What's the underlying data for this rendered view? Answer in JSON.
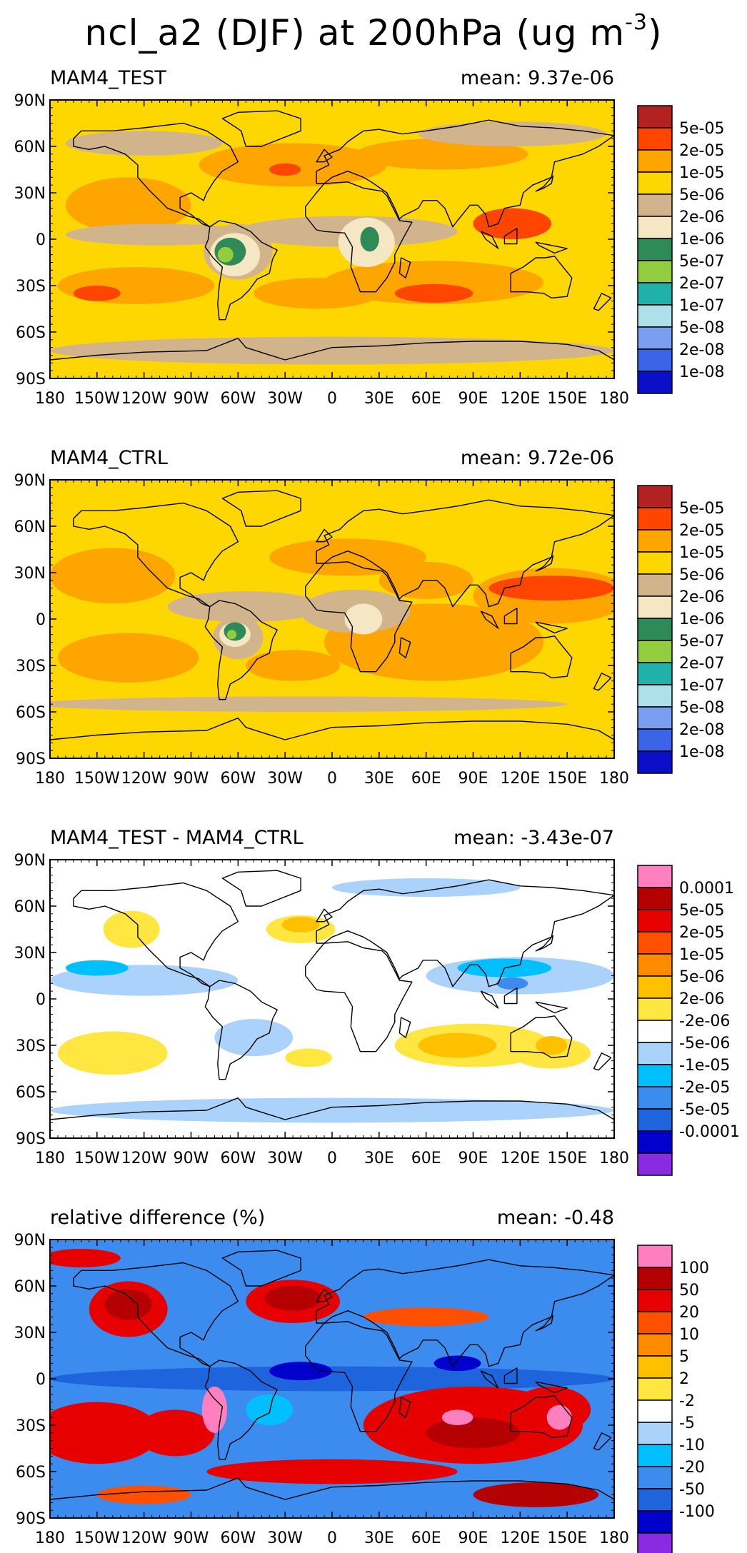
{
  "figure": {
    "title_prefix": "ncl_a2 (DJF) at 200hPa (ug m",
    "title_exponent": "-3",
    "title_suffix": ")"
  },
  "colors": {
    "abs_levels": [
      "#0b0fc8",
      "#3c64e6",
      "#7b9ef0",
      "#aee0ea",
      "#20b2aa",
      "#94cc40",
      "#2e8b57",
      "#f5e6c4",
      "#d2b48c",
      "#ffd700",
      "#ffa500",
      "#ff4500",
      "#b22222"
    ],
    "diff_levels": [
      "#8a2be2",
      "#0000cd",
      "#1e64dc",
      "#3c8cf0",
      "#00bfff",
      "#aad2fa",
      "#ffffff",
      "#ffe640",
      "#ffc000",
      "#ff8c00",
      "#ff5000",
      "#e60000",
      "#b40000",
      "#ff7fbf"
    ],
    "land_outline": "#000000"
  },
  "chart_data": [
    {
      "type": "heatmap",
      "title": "MAM4_TEST",
      "stat_label": "mean: 9.37e-06",
      "mean": 9.37e-06,
      "units": "ug m-3",
      "x_ticks": [
        "180",
        "150W",
        "120W",
        "90W",
        "60W",
        "30W",
        "0",
        "30E",
        "60E",
        "90E",
        "120E",
        "150E",
        "180"
      ],
      "y_ticks": [
        "90N",
        "60N",
        "30N",
        "0",
        "30S",
        "60S",
        "90S"
      ],
      "xlim": [
        -180,
        180
      ],
      "ylim": [
        -90,
        90
      ],
      "legend_levels": [
        "5e-05",
        "2e-05",
        "1e-05",
        "5e-06",
        "2e-06",
        "1e-06",
        "5e-07",
        "2e-07",
        "1e-07",
        "5e-08",
        "2e-08",
        "1e-08"
      ],
      "palette": "abs",
      "background_level": 9,
      "blobs": [
        {
          "lon": -25,
          "lat": 48,
          "rx": 60,
          "ry": 14,
          "level": 10
        },
        {
          "lon": -130,
          "lat": 22,
          "rx": 40,
          "ry": 18,
          "level": 10
        },
        {
          "lon": 70,
          "lat": 55,
          "rx": 55,
          "ry": 10,
          "level": 10
        },
        {
          "lon": 65,
          "lat": -28,
          "rx": 70,
          "ry": 14,
          "level": 10
        },
        {
          "lon": -125,
          "lat": -30,
          "rx": 50,
          "ry": 12,
          "level": 10
        },
        {
          "lon": -10,
          "lat": -35,
          "rx": 40,
          "ry": 10,
          "level": 10
        },
        {
          "lon": 115,
          "lat": 10,
          "rx": 25,
          "ry": 10,
          "level": 11
        },
        {
          "lon": 65,
          "lat": -35,
          "rx": 25,
          "ry": 6,
          "level": 11
        },
        {
          "lon": -150,
          "lat": -35,
          "rx": 15,
          "ry": 5,
          "level": 11
        },
        {
          "lon": -30,
          "lat": 45,
          "rx": 10,
          "ry": 4,
          "level": 11
        },
        {
          "lon": -120,
          "lat": 62,
          "rx": 50,
          "ry": 8,
          "level": 8
        },
        {
          "lon": 115,
          "lat": 68,
          "rx": 60,
          "ry": 8,
          "level": 8
        },
        {
          "lon": 0,
          "lat": -72,
          "rx": 180,
          "ry": 9,
          "level": 8
        },
        {
          "lon": -110,
          "lat": 3,
          "rx": 60,
          "ry": 7,
          "level": 8
        },
        {
          "lon": 10,
          "lat": 5,
          "rx": 70,
          "ry": 10,
          "level": 8
        },
        {
          "lon": -60,
          "lat": -8,
          "rx": 22,
          "ry": 18,
          "level": 8
        },
        {
          "lon": -62,
          "lat": -10,
          "rx": 16,
          "ry": 14,
          "level": 7
        },
        {
          "lon": 22,
          "lat": -2,
          "rx": 18,
          "ry": 16,
          "level": 7
        },
        {
          "lon": -65,
          "lat": -8,
          "rx": 10,
          "ry": 9,
          "level": 6
        },
        {
          "lon": 24,
          "lat": 0,
          "rx": 6,
          "ry": 8,
          "level": 6
        },
        {
          "lon": -68,
          "lat": -10,
          "rx": 5,
          "ry": 5,
          "level": 5
        }
      ]
    },
    {
      "type": "heatmap",
      "title": "MAM4_CTRL",
      "stat_label": "mean: 9.72e-06",
      "mean": 9.72e-06,
      "units": "ug m-3",
      "x_ticks": [
        "180",
        "150W",
        "120W",
        "90W",
        "60W",
        "30W",
        "0",
        "30E",
        "60E",
        "90E",
        "120E",
        "150E",
        "180"
      ],
      "y_ticks": [
        "90N",
        "60N",
        "30N",
        "0",
        "30S",
        "60S",
        "90S"
      ],
      "xlim": [
        -180,
        180
      ],
      "ylim": [
        -90,
        90
      ],
      "legend_levels": [
        "5e-05",
        "2e-05",
        "1e-05",
        "5e-06",
        "2e-06",
        "1e-06",
        "5e-07",
        "2e-07",
        "1e-07",
        "5e-08",
        "2e-08",
        "1e-08"
      ],
      "palette": "abs",
      "background_level": 9,
      "blobs": [
        {
          "lon": -140,
          "lat": 28,
          "rx": 40,
          "ry": 18,
          "level": 10
        },
        {
          "lon": 10,
          "lat": 40,
          "rx": 50,
          "ry": 12,
          "level": 10
        },
        {
          "lon": 60,
          "lat": 25,
          "rx": 30,
          "ry": 12,
          "level": 10
        },
        {
          "lon": 65,
          "lat": -15,
          "rx": 70,
          "ry": 25,
          "level": 10
        },
        {
          "lon": -130,
          "lat": -25,
          "rx": 45,
          "ry": 16,
          "level": 10
        },
        {
          "lon": 140,
          "lat": 15,
          "rx": 50,
          "ry": 18,
          "level": 10
        },
        {
          "lon": -25,
          "lat": -30,
          "rx": 30,
          "ry": 10,
          "level": 10
        },
        {
          "lon": 140,
          "lat": 20,
          "rx": 40,
          "ry": 8,
          "level": 11
        },
        {
          "lon": -55,
          "lat": 8,
          "rx": 50,
          "ry": 10,
          "level": 8
        },
        {
          "lon": 15,
          "lat": 5,
          "rx": 35,
          "ry": 14,
          "level": 8
        },
        {
          "lon": -60,
          "lat": -12,
          "rx": 16,
          "ry": 14,
          "level": 8
        },
        {
          "lon": 20,
          "lat": 0,
          "rx": 12,
          "ry": 10,
          "level": 7
        },
        {
          "lon": -62,
          "lat": -10,
          "rx": 10,
          "ry": 8,
          "level": 7
        },
        {
          "lon": -62,
          "lat": -8,
          "rx": 7,
          "ry": 6,
          "level": 6
        },
        {
          "lon": -64,
          "lat": -10,
          "rx": 3,
          "ry": 3,
          "level": 5
        },
        {
          "lon": -20,
          "lat": -55,
          "rx": 170,
          "ry": 5,
          "level": 8
        }
      ]
    },
    {
      "type": "heatmap",
      "title": "MAM4_TEST - MAM4_CTRL",
      "stat_label": "mean: -3.43e-07",
      "mean": -3.43e-07,
      "units": "ug m-3",
      "x_ticks": [
        "180",
        "150W",
        "120W",
        "90W",
        "60W",
        "30W",
        "0",
        "30E",
        "60E",
        "90E",
        "120E",
        "150E",
        "180"
      ],
      "y_ticks": [
        "90N",
        "60N",
        "30N",
        "0",
        "30S",
        "60S",
        "90S"
      ],
      "xlim": [
        -180,
        180
      ],
      "ylim": [
        -90,
        90
      ],
      "legend_levels": [
        "0.0001",
        "5e-05",
        "2e-05",
        "1e-05",
        "5e-06",
        "2e-06",
        "-2e-06",
        "-5e-06",
        "-1e-05",
        "-2e-05",
        "-5e-05",
        "-0.0001"
      ],
      "palette": "diff",
      "background_level": 6,
      "blobs": [
        {
          "lon": 0,
          "lat": -72,
          "rx": 180,
          "ry": 8,
          "level": 5
        },
        {
          "lon": -120,
          "lat": 12,
          "rx": 60,
          "ry": 10,
          "level": 5
        },
        {
          "lon": 120,
          "lat": 15,
          "rx": 60,
          "ry": 12,
          "level": 5
        },
        {
          "lon": -50,
          "lat": -25,
          "rx": 25,
          "ry": 12,
          "level": 5
        },
        {
          "lon": 60,
          "lat": 72,
          "rx": 60,
          "ry": 6,
          "level": 5
        },
        {
          "lon": 110,
          "lat": 20,
          "rx": 30,
          "ry": 6,
          "level": 4
        },
        {
          "lon": -150,
          "lat": 20,
          "rx": 20,
          "ry": 5,
          "level": 4
        },
        {
          "lon": 115,
          "lat": 10,
          "rx": 10,
          "ry": 4,
          "level": 3
        },
        {
          "lon": -128,
          "lat": 45,
          "rx": 18,
          "ry": 12,
          "level": 7
        },
        {
          "lon": -20,
          "lat": 45,
          "rx": 22,
          "ry": 9,
          "level": 7
        },
        {
          "lon": -20,
          "lat": 48,
          "rx": 12,
          "ry": 5,
          "level": 8
        },
        {
          "lon": 90,
          "lat": -30,
          "rx": 50,
          "ry": 14,
          "level": 7
        },
        {
          "lon": 80,
          "lat": -30,
          "rx": 25,
          "ry": 8,
          "level": 8
        },
        {
          "lon": -140,
          "lat": -35,
          "rx": 35,
          "ry": 14,
          "level": 7
        },
        {
          "lon": 140,
          "lat": -35,
          "rx": 25,
          "ry": 10,
          "level": 7
        },
        {
          "lon": 140,
          "lat": -30,
          "rx": 10,
          "ry": 6,
          "level": 8
        },
        {
          "lon": -15,
          "lat": -38,
          "rx": 15,
          "ry": 6,
          "level": 7
        }
      ]
    },
    {
      "type": "heatmap",
      "title": "relative difference (%)",
      "stat_label": "mean: -0.48",
      "mean": -0.48,
      "units": "%",
      "x_ticks": [
        "180",
        "150W",
        "120W",
        "90W",
        "60W",
        "30W",
        "0",
        "30E",
        "60E",
        "90E",
        "120E",
        "150E",
        "180"
      ],
      "y_ticks": [
        "90N",
        "60N",
        "30N",
        "0",
        "30S",
        "60S",
        "90S"
      ],
      "xlim": [
        -180,
        180
      ],
      "ylim": [
        -90,
        90
      ],
      "legend_levels": [
        "100",
        "50",
        "20",
        "10",
        "5",
        "2",
        "-2",
        "-5",
        "-10",
        "-20",
        "-50",
        "-100"
      ],
      "palette": "diff",
      "background_level": 3,
      "blobs": [
        {
          "lon": 0,
          "lat": 0,
          "rx": 180,
          "ry": 8,
          "level": 2
        },
        {
          "lon": -20,
          "lat": 5,
          "rx": 20,
          "ry": 6,
          "level": 1
        },
        {
          "lon": 80,
          "lat": 10,
          "rx": 15,
          "ry": 5,
          "level": 1
        },
        {
          "lon": -130,
          "lat": 45,
          "rx": 25,
          "ry": 18,
          "level": 11
        },
        {
          "lon": -130,
          "lat": 48,
          "rx": 15,
          "ry": 10,
          "level": 12
        },
        {
          "lon": -25,
          "lat": 50,
          "rx": 30,
          "ry": 14,
          "level": 11
        },
        {
          "lon": -25,
          "lat": 52,
          "rx": 18,
          "ry": 8,
          "level": 12
        },
        {
          "lon": 60,
          "lat": 40,
          "rx": 40,
          "ry": 6,
          "level": 10
        },
        {
          "lon": -160,
          "lat": 78,
          "rx": 25,
          "ry": 6,
          "level": 11
        },
        {
          "lon": -150,
          "lat": -35,
          "rx": 40,
          "ry": 20,
          "level": 11
        },
        {
          "lon": -100,
          "lat": -35,
          "rx": 25,
          "ry": 15,
          "level": 11
        },
        {
          "lon": 90,
          "lat": -30,
          "rx": 70,
          "ry": 25,
          "level": 11
        },
        {
          "lon": 90,
          "lat": -35,
          "rx": 30,
          "ry": 10,
          "level": 12
        },
        {
          "lon": 140,
          "lat": -20,
          "rx": 25,
          "ry": 15,
          "level": 11
        },
        {
          "lon": -75,
          "lat": -20,
          "rx": 8,
          "ry": 15,
          "level": 13
        },
        {
          "lon": 145,
          "lat": -25,
          "rx": 8,
          "ry": 8,
          "level": 13
        },
        {
          "lon": 80,
          "lat": -25,
          "rx": 10,
          "ry": 5,
          "level": 13
        },
        {
          "lon": 0,
          "lat": -60,
          "rx": 80,
          "ry": 8,
          "level": 11
        },
        {
          "lon": 130,
          "lat": -75,
          "rx": 40,
          "ry": 8,
          "level": 12
        },
        {
          "lon": -120,
          "lat": -75,
          "rx": 30,
          "ry": 6,
          "level": 10
        },
        {
          "lon": -40,
          "lat": -20,
          "rx": 15,
          "ry": 10,
          "level": 4
        }
      ]
    }
  ]
}
